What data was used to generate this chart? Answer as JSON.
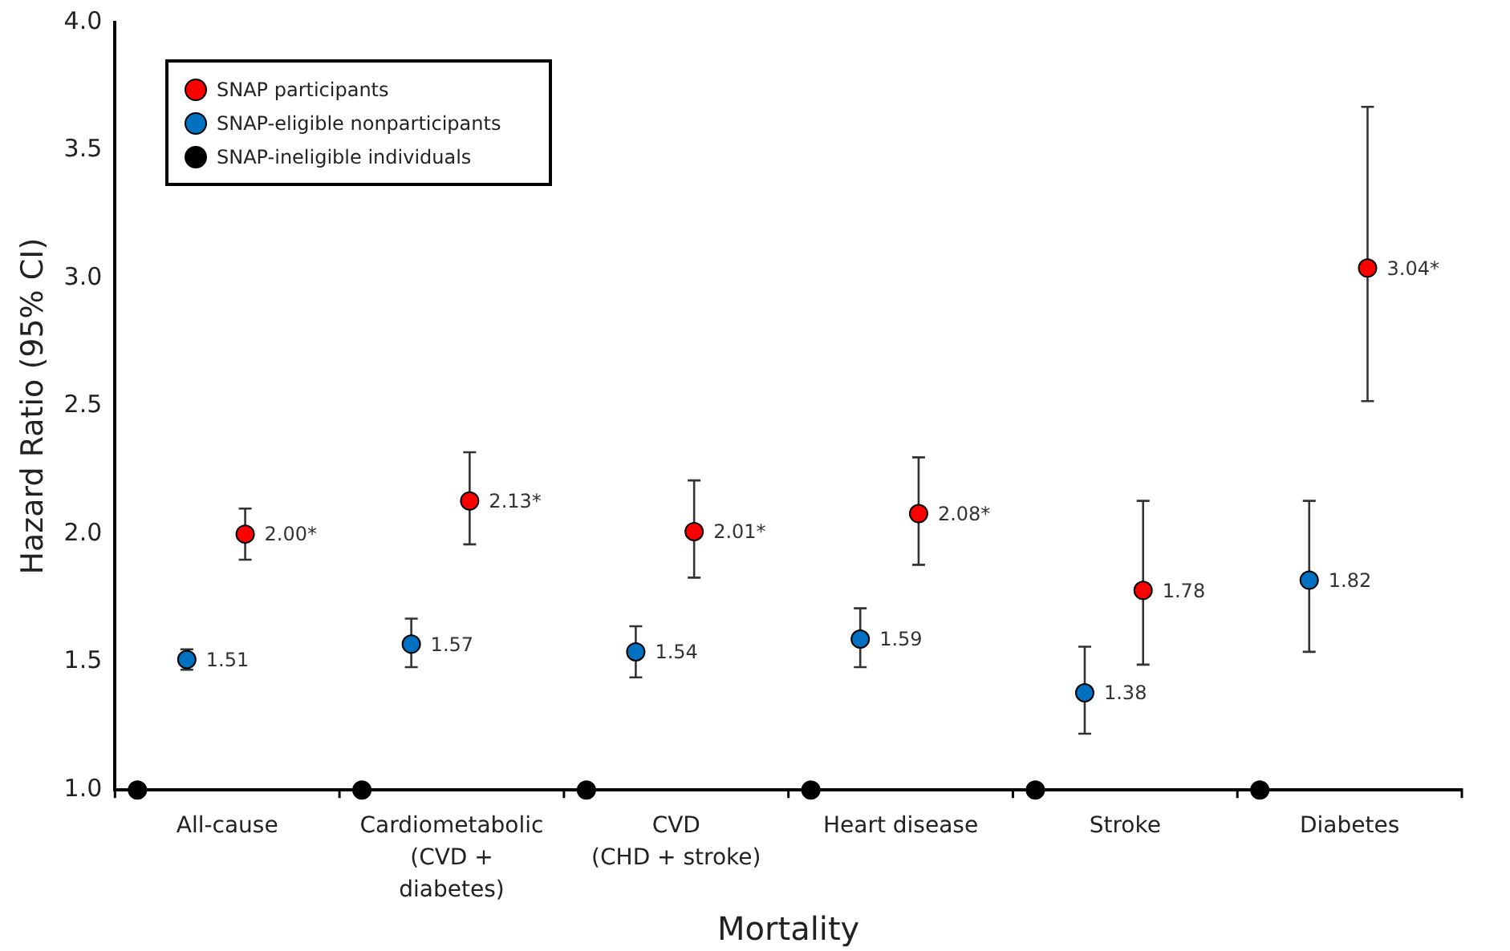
{
  "chart_data": {
    "type": "scatter",
    "xlabel": "Mortality",
    "ylabel": "Hazard Ratio (95% CI)",
    "categories": [
      "All-cause",
      "Cardiometabolic\n(CVD +\ndiabetes)",
      "CVD\n(CHD + stroke)",
      "Heart disease",
      "Stroke",
      "Diabetes"
    ],
    "series": [
      {
        "name": "SNAP participants",
        "color": "#ff0000",
        "values": [
          2.0,
          2.13,
          2.01,
          2.08,
          1.78,
          3.04
        ],
        "errors": [
          [
            1.9,
            2.1
          ],
          [
            1.96,
            2.32
          ],
          [
            1.83,
            2.21
          ],
          [
            1.88,
            2.3
          ],
          [
            1.49,
            2.13
          ],
          [
            2.52,
            3.67
          ]
        ],
        "value_labels": [
          "2.00*",
          "2.13*",
          "2.01*",
          "2.08*",
          "1.78",
          "3.04*"
        ]
      },
      {
        "name": "SNAP-eligible nonparticipants",
        "color": "#0070c0",
        "values": [
          1.51,
          1.57,
          1.54,
          1.59,
          1.38,
          1.82
        ],
        "errors": [
          [
            1.47,
            1.55
          ],
          [
            1.48,
            1.67
          ],
          [
            1.44,
            1.64
          ],
          [
            1.48,
            1.71
          ],
          [
            1.22,
            1.56
          ],
          [
            1.54,
            2.13
          ]
        ],
        "value_labels": [
          "1.51",
          "1.57",
          "1.54",
          "1.59",
          "1.38",
          "1.82"
        ]
      },
      {
        "name": "SNAP-ineligible individuals",
        "color": "#000000",
        "values": [
          1.0,
          1.0,
          1.0,
          1.0,
          1.0,
          1.0
        ]
      }
    ],
    "ylim": [
      1,
      4
    ],
    "yticks": [
      {
        "value": 1,
        "label": "1.0"
      },
      {
        "value": 1.5,
        "label": "1.5"
      },
      {
        "value": 2,
        "label": "2.0"
      },
      {
        "value": 2.5,
        "label": "2.5"
      },
      {
        "value": 3,
        "label": "3.0"
      },
      {
        "value": 3.5,
        "label": "3.5"
      },
      {
        "value": 4,
        "label": "4.0"
      }
    ],
    "grid": false,
    "legend": "top left",
    "marker": "circle"
  }
}
